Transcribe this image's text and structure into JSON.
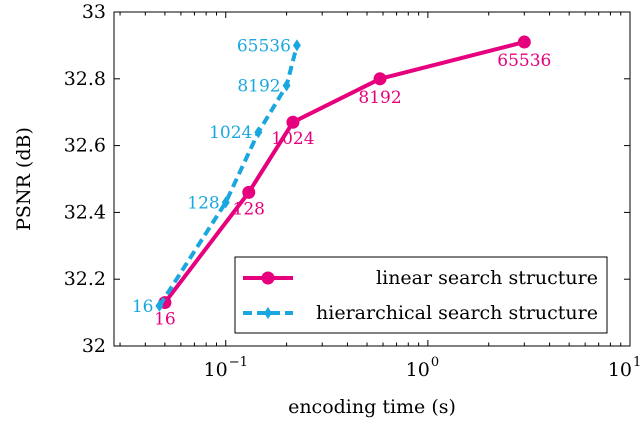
{
  "chart_data": {
    "type": "line",
    "xlabel": "encoding time (s)",
    "ylabel": "PSNR (dB)",
    "xscale": "log",
    "xlim": [
      0.028,
      10
    ],
    "ylim": [
      32,
      33
    ],
    "x_ticks": [
      0.1,
      1,
      10
    ],
    "x_tick_labels": [
      {
        "base": "10",
        "exp": "−1"
      },
      {
        "base": "10",
        "exp": "0"
      },
      {
        "base": "10",
        "exp": "1"
      }
    ],
    "y_ticks": [
      32,
      32.2,
      32.4,
      32.6,
      32.8,
      33
    ],
    "y_tick_labels": [
      "32",
      "32.2",
      "32.4",
      "32.6",
      "32.8",
      "33"
    ],
    "legend_position": "bottom-right",
    "series": [
      {
        "name": "linear search structure",
        "color": "#e6007e",
        "line_style": "solid",
        "marker": "circle",
        "x": [
          0.05,
          0.13,
          0.215,
          0.58,
          3.0
        ],
        "y": [
          32.13,
          32.46,
          32.67,
          32.8,
          32.91
        ],
        "point_labels": [
          "16",
          "128",
          "1024",
          "8192",
          "65536"
        ]
      },
      {
        "name": "hierarchical search structure",
        "color": "#1aa7e0",
        "line_style": "dashed",
        "marker": "diamond",
        "x": [
          0.047,
          0.1,
          0.145,
          0.2,
          0.225
        ],
        "y": [
          32.12,
          32.43,
          32.64,
          32.78,
          32.9
        ],
        "point_labels": [
          "16",
          "128",
          "1024",
          "8192",
          "65536"
        ]
      }
    ]
  }
}
